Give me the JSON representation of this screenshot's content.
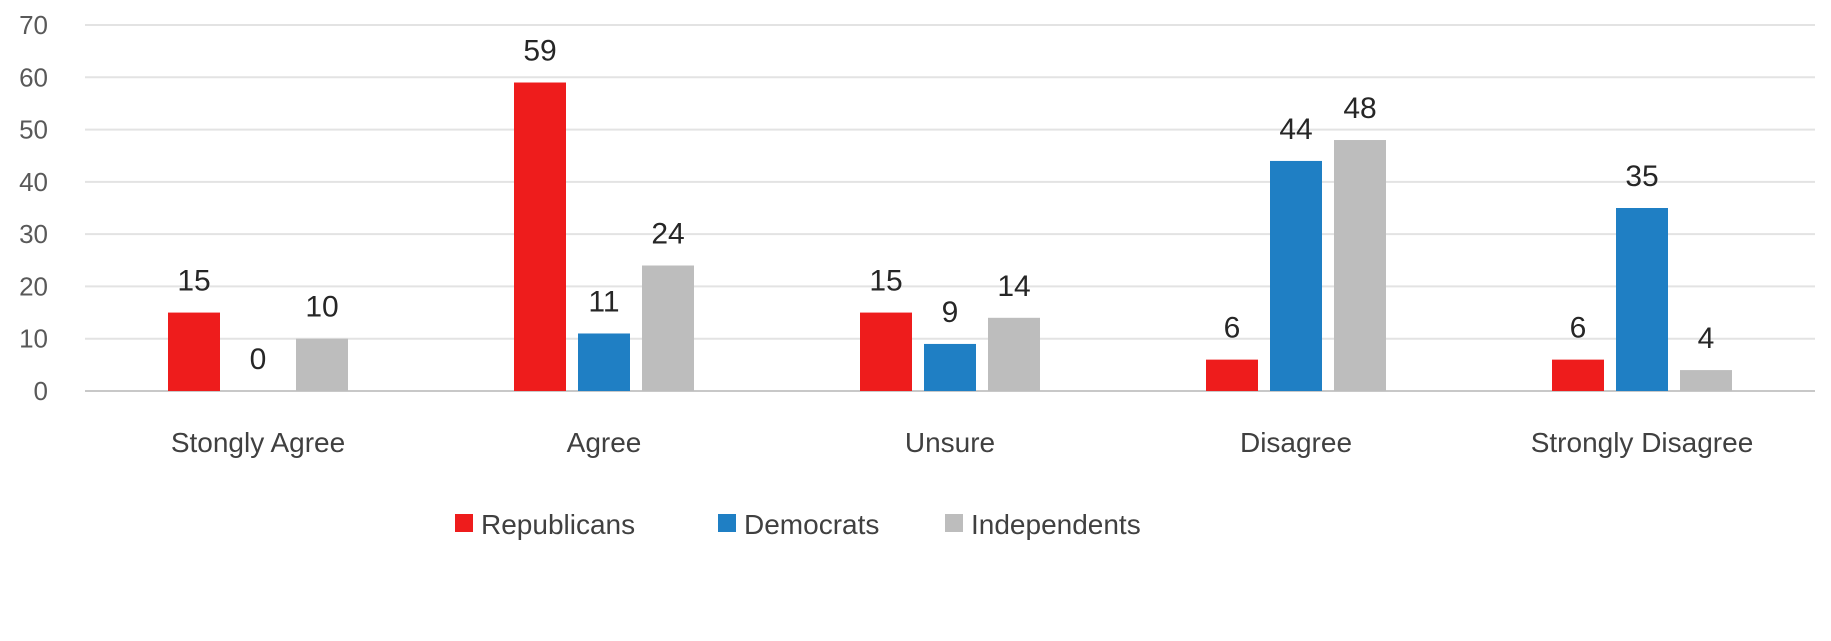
{
  "chart_data": {
    "type": "bar",
    "title": "",
    "xlabel": "",
    "ylabel": "",
    "ylim": [
      0,
      70
    ],
    "yticks": [
      0,
      10,
      20,
      30,
      40,
      50,
      60,
      70
    ],
    "grid": true,
    "legend_position": "bottom",
    "categories": [
      "Stongly Agree",
      "Agree",
      "Unsure",
      "Disagree",
      "Strongly Disagree"
    ],
    "series": [
      {
        "name": "Republicans",
        "color": "#ee1c1c",
        "values": [
          15,
          59,
          15,
          6,
          6
        ]
      },
      {
        "name": "Democrats",
        "color": "#1f7fc4",
        "values": [
          0,
          11,
          9,
          44,
          35
        ]
      },
      {
        "name": "Independents",
        "color": "#bdbdbd",
        "values": [
          10,
          24,
          14,
          48,
          4
        ]
      }
    ]
  }
}
